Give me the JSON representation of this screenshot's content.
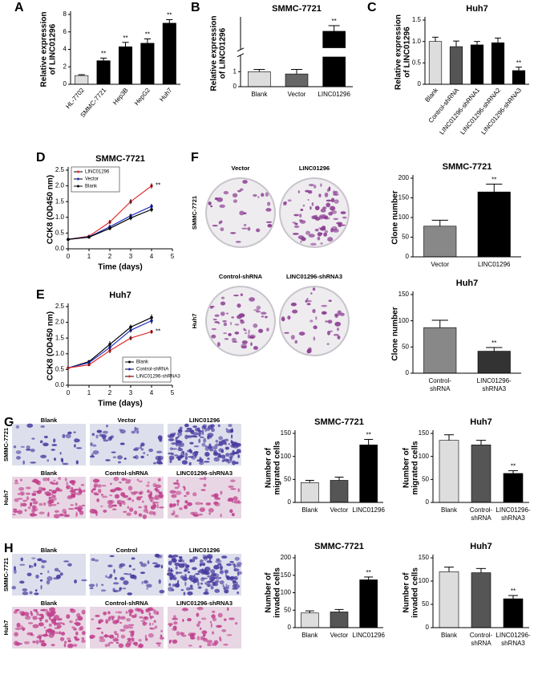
{
  "panels": [
    "A",
    "B",
    "C",
    "D",
    "E",
    "F",
    "G",
    "H"
  ],
  "image_panels": [
    {
      "row_labels": [
        "SMMC-7721",
        "Huh7"
      ],
      "rows": [
        [
          "Vector",
          "LINC01296"
        ],
        [
          "Control-shRNA",
          "LINC01296-shRNA3"
        ]
      ]
    },
    {
      "row_labels": [
        "SMMC-7721",
        "Huh7"
      ],
      "rows": [
        [
          "Blank",
          "Vector",
          "LINC01296"
        ],
        [
          "Blank",
          "Control-shRNA",
          "LINC01296-shRNA3"
        ]
      ]
    },
    {
      "row_labels": [
        "SMMC-7721",
        "Huh7"
      ],
      "rows": [
        [
          "Blank",
          "Control",
          "LINC01296"
        ],
        [
          "Blank",
          "Control-shRNA",
          "LINC01296-shRNA3"
        ]
      ]
    }
  ],
  "chart_data": [
    {
      "type": "bar",
      "y_label": [
        "Relative expression",
        "of LINC01296"
      ],
      "categories": [
        "HL-7702",
        "SMMC-7721",
        "Hep3B",
        "HepG2",
        "Huh7"
      ],
      "values": [
        1.0,
        2.7,
        4.3,
        4.7,
        7.0
      ],
      "errors": [
        0.1,
        0.3,
        0.5,
        0.5,
        0.4
      ],
      "annotations": [
        null,
        "**",
        "**",
        "**",
        "**"
      ],
      "colors": [
        "#dddddd",
        "#000000",
        "#000000",
        "#000000",
        "#000000"
      ],
      "ylim": [
        0,
        8
      ],
      "yticks": [
        0,
        2,
        4,
        6,
        8
      ]
    },
    {
      "type": "bar",
      "title": "SMMC-7721",
      "y_label": [
        "Relative expression",
        "of LINC01296"
      ],
      "categories": [
        "Blank",
        "Vector",
        "LINC01296"
      ],
      "values": [
        1.0,
        0.85,
        52
      ],
      "errors": [
        0.15,
        0.3,
        4
      ],
      "annotations": [
        null,
        null,
        "**"
      ],
      "colors": [
        "#dddddd",
        "#666666",
        "#000000"
      ],
      "ylim": [
        0,
        60
      ],
      "axis_break": [
        2,
        40
      ],
      "yticks": [
        0,
        1
      ]
    },
    {
      "type": "bar",
      "title": "Huh7",
      "y_label": [
        "Relative expression",
        "of LINC01296"
      ],
      "categories": [
        "Blank",
        "Control-shRNA",
        "LINC01296-shRNA1",
        "LINC01296-shRNA2",
        "LINC01296-shRNA3"
      ],
      "values": [
        1.0,
        0.88,
        0.92,
        0.97,
        0.32
      ],
      "errors": [
        0.1,
        0.13,
        0.08,
        0.11,
        0.08
      ],
      "annotations": [
        null,
        null,
        null,
        null,
        "**"
      ],
      "colors": [
        "#dddddd",
        "#555555",
        "#000000",
        "#000000",
        "#000000"
      ],
      "ylim": [
        0,
        1.5
      ],
      "yticks": [
        0,
        0.5,
        {
          "value": 1,
          "label": "1.0"
        },
        1.5
      ]
    },
    {
      "type": "line",
      "title": "SMMC-7721",
      "y_label": "CCK8 (OD450 nm)",
      "x_label": "Time (days)",
      "x": [
        0,
        1,
        2,
        3,
        4
      ],
      "xlim": [
        0,
        5
      ],
      "xticks": [
        0,
        1,
        2,
        3,
        4,
        5
      ],
      "ylim": [
        0,
        2.5
      ],
      "yticks": [
        {
          "value": 0,
          "label": "0.0"
        },
        0.5,
        {
          "value": 1,
          "label": "1.0"
        },
        1.5,
        {
          "value": 2,
          "label": "2.0"
        },
        2.5
      ],
      "legend": "upper left",
      "series": [
        {
          "name": "LINC01296",
          "color": "#e03030",
          "values": [
            0.3,
            0.4,
            0.85,
            1.5,
            2.0
          ],
          "errors": [
            0.02,
            0.04,
            0.07,
            0.08,
            0.08
          ],
          "annotation": "**"
        },
        {
          "name": "Vector",
          "color": "#2030c0",
          "values": [
            0.3,
            0.38,
            0.7,
            1.05,
            1.35
          ],
          "errors": [
            0.02,
            0.04,
            0.06,
            0.07,
            0.08
          ]
        },
        {
          "name": "Blank",
          "color": "#000000",
          "values": [
            0.3,
            0.37,
            0.65,
            0.98,
            1.25
          ],
          "errors": [
            0.02,
            0.04,
            0.06,
            0.07,
            0.08
          ]
        }
      ]
    },
    {
      "type": "line",
      "title": "Huh7",
      "y_label": "CCK8 (OD450 nm)",
      "x_label": "Time (days)",
      "x": [
        0,
        1,
        2,
        3,
        4
      ],
      "xlim": [
        0,
        5
      ],
      "xticks": [
        0,
        1,
        2,
        3,
        4,
        5
      ],
      "ylim": [
        0,
        2.5
      ],
      "yticks": [
        {
          "value": 0,
          "label": "0.0"
        },
        0.5,
        {
          "value": 1,
          "label": "1.0"
        },
        1.5,
        {
          "value": 2,
          "label": "2.0"
        },
        2.5
      ],
      "legend": "lower right",
      "series": [
        {
          "name": "Blank",
          "color": "#000000",
          "values": [
            0.55,
            0.75,
            1.3,
            1.85,
            2.15
          ],
          "errors": [
            0.02,
            0.05,
            0.1,
            0.08,
            0.1
          ]
        },
        {
          "name": "Control-shRNA",
          "color": "#2030c0",
          "values": [
            0.55,
            0.72,
            1.2,
            1.75,
            2.05
          ],
          "errors": [
            0.02,
            0.05,
            0.1,
            0.08,
            0.1
          ]
        },
        {
          "name": "LINC01296-shRNA3",
          "color": "#e03030",
          "values": [
            0.55,
            0.65,
            1.1,
            1.5,
            1.7
          ],
          "errors": [
            0.02,
            0.04,
            0.08,
            0.07,
            0.06
          ],
          "annotation": "**"
        }
      ]
    },
    {
      "type": "bar",
      "title": "SMMC-7721",
      "y_label": "Clone number",
      "categories": [
        "Vector",
        "LINC01296"
      ],
      "values": [
        78,
        165
      ],
      "errors": [
        15,
        20
      ],
      "annotations": [
        null,
        "**"
      ],
      "colors": [
        "#888888",
        "#000000"
      ],
      "ylim": [
        0,
        200
      ],
      "yticks": [
        0,
        50,
        100,
        150,
        200
      ]
    },
    {
      "type": "bar",
      "title": "Huh7",
      "y_label": "Clone number",
      "categories": [
        [
          "Control-",
          "shRNA"
        ],
        [
          "LINC01296-",
          "shRNA3"
        ]
      ],
      "values": [
        87,
        42
      ],
      "errors": [
        14,
        7
      ],
      "annotations": [
        null,
        "**"
      ],
      "colors": [
        "#888888",
        "#333333"
      ],
      "ylim": [
        0,
        150
      ],
      "yticks": [
        0,
        50,
        100,
        150
      ]
    },
    {
      "type": "bar",
      "title": "SMMC-7721",
      "y_label": [
        "Number of",
        "migrated cells"
      ],
      "categories": [
        "Blank",
        "Vector",
        "LINC01296"
      ],
      "values": [
        43,
        48,
        125
      ],
      "errors": [
        5,
        7,
        12
      ],
      "annotations": [
        null,
        null,
        "**"
      ],
      "colors": [
        "#dddddd",
        "#555555",
        "#000000"
      ],
      "ylim": [
        0,
        150
      ],
      "yticks": [
        0,
        50,
        100,
        150
      ]
    },
    {
      "type": "bar",
      "title": "Huh7",
      "y_label": [
        "Number of",
        "migrated cells"
      ],
      "categories": [
        "Blank",
        [
          "Control-",
          "shRNA"
        ],
        [
          "LINC01296-",
          "shRNA3"
        ]
      ],
      "values": [
        135,
        125,
        63
      ],
      "errors": [
        12,
        10,
        6
      ],
      "annotations": [
        null,
        null,
        "**"
      ],
      "colors": [
        "#dddddd",
        "#555555",
        "#000000"
      ],
      "ylim": [
        0,
        150
      ],
      "yticks": [
        0,
        50,
        100,
        150
      ]
    },
    {
      "type": "bar",
      "title": "SMMC-7721",
      "y_label": [
        "Number of",
        "invaded cells"
      ],
      "categories": [
        "Blank",
        "Vector",
        "LINC01296"
      ],
      "values": [
        42,
        45,
        137
      ],
      "errors": [
        6,
        7,
        8
      ],
      "annotations": [
        null,
        null,
        "**"
      ],
      "colors": [
        "#dddddd",
        "#555555",
        "#000000"
      ],
      "ylim": [
        0,
        200
      ],
      "yticks": [
        0,
        50,
        100,
        150,
        200
      ]
    },
    {
      "type": "bar",
      "title": "Huh7",
      "y_label": [
        "Number of",
        "invaded cells"
      ],
      "categories": [
        "Blank",
        [
          "Control-",
          "shRNA"
        ],
        [
          "LINC01296-",
          "shRNA3"
        ]
      ],
      "values": [
        120,
        118,
        62
      ],
      "errors": [
        10,
        9,
        7
      ],
      "annotations": [
        null,
        null,
        "**"
      ],
      "colors": [
        "#dddddd",
        "#555555",
        "#000000"
      ],
      "ylim": [
        0,
        150
      ],
      "yticks": [
        0,
        50,
        100,
        150
      ]
    }
  ]
}
